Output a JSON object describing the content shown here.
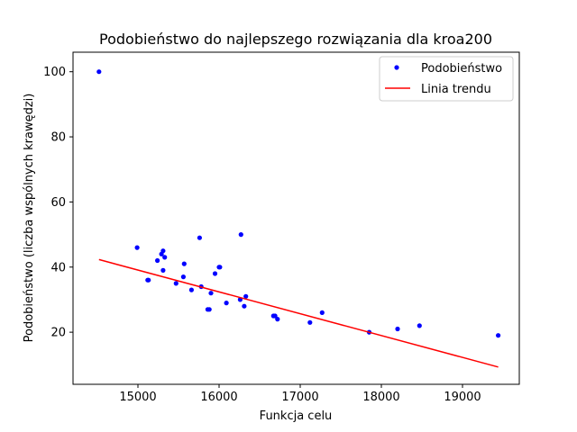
{
  "chart_data": {
    "type": "scatter",
    "title": "Podobieństwo do najlepszego rozwiązania dla kroa200",
    "xlabel": "Funkcja celu",
    "ylabel": "Podobieństwo (liczba wspólnych krawędzi)",
    "xlim": [
      14200,
      19700
    ],
    "ylim": [
      4,
      106
    ],
    "xticks": [
      15000,
      16000,
      17000,
      18000,
      19000
    ],
    "yticks": [
      20,
      40,
      60,
      80,
      100
    ],
    "grid": false,
    "legend_position": "top-right",
    "series": [
      {
        "name": "Podobieństwo",
        "kind": "scatter",
        "color": "#0000ff",
        "points": [
          [
            14520,
            100
          ],
          [
            14990,
            46
          ],
          [
            15120,
            36
          ],
          [
            15130,
            36
          ],
          [
            15240,
            42
          ],
          [
            15290,
            44
          ],
          [
            15310,
            45
          ],
          [
            15310,
            39
          ],
          [
            15330,
            43
          ],
          [
            15470,
            35
          ],
          [
            15560,
            37
          ],
          [
            15570,
            41
          ],
          [
            15660,
            33
          ],
          [
            15760,
            49
          ],
          [
            15780,
            34
          ],
          [
            15860,
            27
          ],
          [
            15880,
            27
          ],
          [
            15900,
            32
          ],
          [
            15950,
            38
          ],
          [
            16000,
            40
          ],
          [
            16010,
            40
          ],
          [
            16090,
            29
          ],
          [
            16260,
            30
          ],
          [
            16270,
            50
          ],
          [
            16310,
            28
          ],
          [
            16330,
            31
          ],
          [
            16670,
            25
          ],
          [
            16690,
            25
          ],
          [
            16720,
            24
          ],
          [
            17120,
            23
          ],
          [
            17270,
            26
          ],
          [
            17850,
            20
          ],
          [
            18200,
            21
          ],
          [
            18470,
            22
          ],
          [
            19440,
            19
          ]
        ]
      },
      {
        "name": "Linia trendu",
        "kind": "line",
        "color": "#ff0000",
        "x": [
          14520,
          19440
        ],
        "y": [
          42.3,
          9.3
        ]
      }
    ]
  }
}
